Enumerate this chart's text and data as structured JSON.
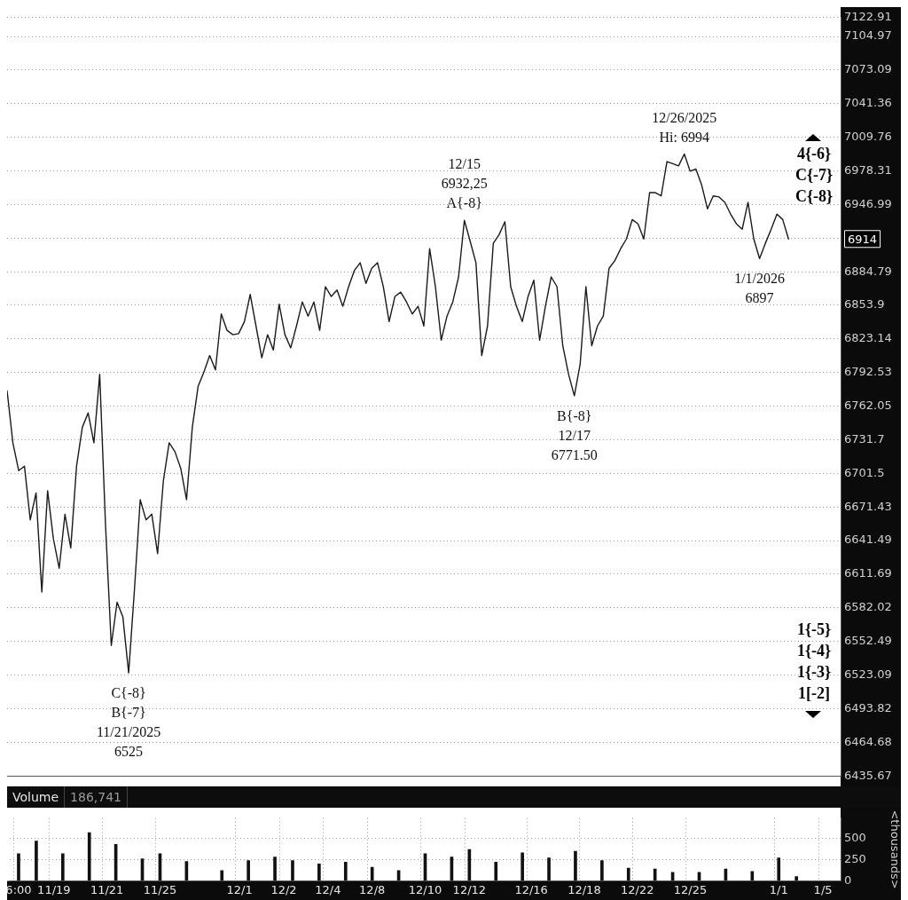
{
  "chart_data": [
    {
      "type": "line",
      "log": "y",
      "grid": "y",
      "legend": false,
      "marker": "none",
      "line_style": "solid",
      "categories": [
        null,
        null,
        null,
        null,
        null,
        null,
        null,
        null,
        null,
        null,
        null,
        null,
        null,
        null,
        null,
        null,
        null,
        null,
        null,
        null,
        null,
        null,
        null,
        null,
        null,
        null,
        null,
        null,
        null,
        null,
        null,
        null,
        null,
        null,
        null,
        null,
        null,
        null,
        null,
        null,
        null,
        null,
        null,
        null,
        null,
        null,
        null,
        null,
        null,
        null,
        null,
        null,
        null,
        null,
        null,
        null,
        null,
        null,
        null,
        null,
        null,
        null,
        null,
        null,
        null,
        null,
        null,
        null,
        null,
        null,
        null,
        null,
        null,
        null,
        null,
        null,
        null,
        null,
        null,
        null,
        null,
        null,
        null,
        null,
        null,
        null,
        null,
        null,
        null,
        null,
        null,
        null,
        null,
        null,
        null,
        null,
        null,
        null,
        null,
        null,
        null,
        null,
        null,
        null,
        null,
        null,
        null,
        null,
        null,
        null,
        null,
        null,
        null,
        null,
        null,
        null,
        null,
        null,
        null,
        null,
        null,
        null,
        null,
        null,
        null,
        null,
        null,
        null,
        null,
        null,
        null,
        null,
        null,
        null,
        null,
        null,
        null,
        null,
        null,
        null,
        null,
        null,
        null,
        null,
        null
      ],
      "ylim": [
        6435.67,
        7122.91
      ],
      "yticks": [
        7122.91,
        7104.97,
        7073.09,
        7041.36,
        7009.76,
        6978.31,
        6946.99,
        {
          "value": 6915.82,
          "label": null
        },
        6884.79,
        6853.9,
        6823.14,
        6792.53,
        6762.05,
        6731.7,
        6701.5,
        6671.43,
        6641.49,
        6611.69,
        6582.02,
        6552.49,
        6523.09,
        6493.82,
        6464.68,
        6435.67
      ],
      "series": [
        {
          "color": "#1a1a1a",
          "values": [
            6776,
            6729,
            6704,
            6708,
            6660,
            6684,
            6596,
            6686,
            6643,
            6617,
            6665,
            6635,
            6708,
            6743,
            6756,
            6729,
            6791,
            6656,
            6549,
            6587,
            6574,
            6525,
            6598,
            6678,
            6660,
            6665,
            6630,
            6695,
            6729,
            6721,
            6706,
            6678,
            6743,
            6780,
            6793,
            6808,
            6795,
            6846,
            6831,
            6827,
            6828,
            6839,
            6864,
            6835,
            6806,
            6827,
            6813,
            6855,
            6827,
            6815,
            6835,
            6857,
            6844,
            6857,
            6831,
            6871,
            6862,
            6868,
            6853,
            6871,
            6886,
            6893,
            6874,
            6888,
            6893,
            6871,
            6839,
            6862,
            6866,
            6857,
            6846,
            6853,
            6835,
            6906,
            6871,
            6822,
            6844,
            6857,
            6880,
            6932.25,
            6913,
            6893,
            6808,
            6835,
            6911,
            6919,
            6931,
            6871,
            6853,
            6839,
            6862,
            6877,
            6822,
            6853,
            6880,
            6871,
            6817,
            6791,
            6771.5,
            6800,
            6871,
            6817,
            6835,
            6844,
            6888,
            6895,
            6906,
            6915,
            6933,
            6929,
            6915,
            6958,
            6958,
            6955,
            6987,
            6985,
            6983,
            6994,
            6978,
            6980,
            6965,
            6943,
            6955,
            6954,
            6949,
            6938,
            6929,
            6924,
            6949,
            6915,
            6897,
            6911,
            6924,
            6938,
            6933,
            6915,
            null,
            null,
            null,
            null,
            null,
            null,
            null,
            null,
            null
          ]
        }
      ],
      "tick_labels": "y",
      "annotations": [
        {
          "text": "C{-8}\nB{-7}\n11/21/2025\n6525",
          "y": 6525
        },
        {
          "text": "12/15\n6932,25\nA{-8}",
          "y": 6932.25
        },
        {
          "text": "B{-8}\n12/17\n6771.50",
          "y": 6771.5
        },
        {
          "text": "12/26/2025\nHi: 6994",
          "y": 6994
        },
        {
          "text": "1/1/2026\n6897",
          "y": 6897
        },
        "6914",
        "4{-6}\nC{-7}\nC{-8}",
        "1{-5}\n1{-4}\n1{-3}\n1[-2]"
      ]
    },
    {
      "type": "bar",
      "title": "Volume",
      "annotations": [
        "186,741"
      ],
      "ylabel": "<thousands>",
      "grid": true,
      "legend": false,
      "color": "#111111",
      "categories": [
        null,
        "6:00",
        null,
        null,
        null,
        "11/19",
        null,
        null,
        null,
        null,
        null,
        "11/21",
        null,
        null,
        null,
        null,
        null,
        "11/25",
        null,
        null,
        null,
        null,
        null,
        null,
        null,
        null,
        "12/1",
        null,
        null,
        null,
        null,
        "12/2",
        null,
        null,
        null,
        null,
        "12/4",
        null,
        null,
        null,
        null,
        "12/8",
        null,
        null,
        null,
        null,
        null,
        "12/10",
        null,
        null,
        null,
        null,
        "12/12",
        null,
        null,
        null,
        null,
        null,
        null,
        "12/16",
        null,
        null,
        null,
        null,
        null,
        "12/18",
        null,
        null,
        null,
        null,
        null,
        "12/22",
        null,
        null,
        null,
        null,
        null,
        "12/25",
        null,
        null,
        null,
        null,
        null,
        null,
        null,
        null,
        null,
        "1/1",
        null,
        null,
        null,
        null,
        "1/5",
        null,
        null
      ],
      "values": [
        null,
        320,
        null,
        470,
        null,
        null,
        320,
        null,
        null,
        570,
        null,
        null,
        430,
        null,
        null,
        260,
        null,
        320,
        null,
        null,
        230,
        null,
        null,
        null,
        120,
        null,
        null,
        240,
        null,
        null,
        280,
        null,
        240,
        null,
        null,
        200,
        null,
        null,
        220,
        null,
        null,
        160,
        null,
        null,
        120,
        null,
        null,
        320,
        null,
        null,
        280,
        null,
        370,
        null,
        null,
        220,
        null,
        null,
        330,
        null,
        null,
        270,
        null,
        null,
        350,
        null,
        null,
        240,
        null,
        null,
        150,
        null,
        null,
        140,
        null,
        100,
        null,
        null,
        100,
        null,
        null,
        140,
        null,
        null,
        110,
        null,
        null,
        270,
        null,
        50,
        null,
        null,
        null,
        null,
        null
      ],
      "ylim": [
        0,
        740
      ],
      "yticks": [
        0,
        250,
        500
      ]
    }
  ]
}
